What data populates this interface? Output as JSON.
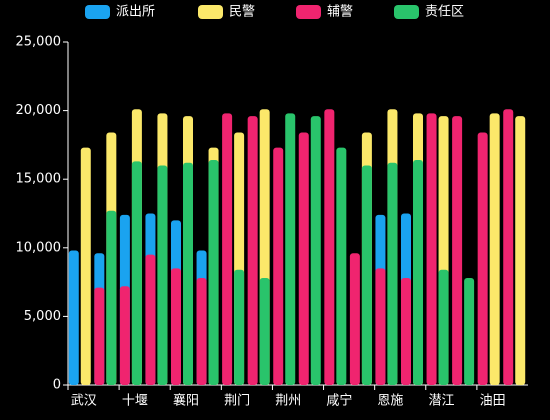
{
  "chart_data": {
    "type": "bar",
    "categories": [
      "武汉",
      null,
      "十堰",
      null,
      "襄阳",
      null,
      "荆门",
      null,
      "荆州",
      null,
      "咸宁",
      null,
      "恩施",
      null,
      "潜江",
      null,
      "油田",
      null
    ],
    "series": [
      {
        "name": "派出所",
        "color": "#1aa3f0",
        "values": [
          9800,
          9600,
          12400,
          12500,
          12000,
          9800,
          null,
          null,
          null,
          null,
          null,
          null,
          12400,
          12500,
          null,
          null,
          null,
          null
        ]
      },
      {
        "name": "民警",
        "color": "#fbe86a",
        "values": [
          17300,
          18400,
          20100,
          19800,
          19600,
          17300,
          18400,
          20100,
          null,
          null,
          null,
          18400,
          20100,
          19800,
          19600,
          null,
          19800,
          19600
        ]
      },
      {
        "name": "辅警",
        "color": "#f0246f",
        "values": [
          null,
          7100,
          7200,
          9500,
          8500,
          7800,
          19800,
          19600,
          17300,
          18400,
          20100,
          9600,
          8500,
          7800,
          19800,
          19600,
          18400,
          20100
        ]
      },
      {
        "name": "责任区",
        "color": "#29c46b",
        "values": [
          null,
          12700,
          16300,
          16000,
          16200,
          16400,
          8400,
          7800,
          19800,
          19600,
          17300,
          16000,
          16200,
          16400,
          8400,
          7800,
          null,
          null
        ]
      }
    ],
    "ylim": [
      0,
      25000
    ],
    "yticks": [
      0,
      {
        "value": 5000,
        "label": "5,000"
      },
      {
        "value": 10000,
        "label": "10,000"
      },
      {
        "value": 15000,
        "label": "15,000"
      },
      {
        "value": 20000,
        "label": "20,000"
      },
      {
        "value": 25000,
        "label": "25,000"
      }
    ]
  }
}
